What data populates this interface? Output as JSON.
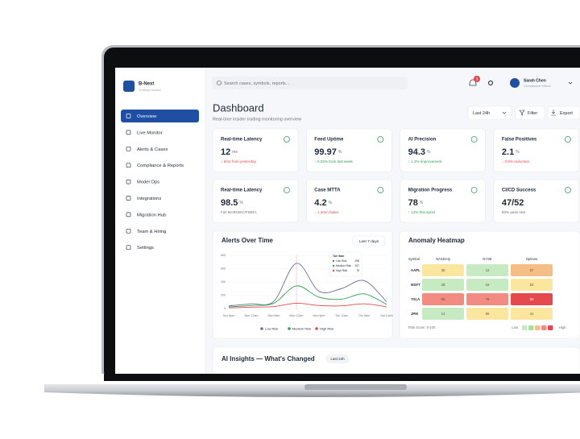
{
  "sidebar": {
    "brand": "B-Next",
    "tagline": "Trading monitor",
    "nav": [
      "Overview",
      "Live Monitor",
      "Alerts & Cases",
      "Compliance & Reports",
      "Model Ops",
      "Integrations",
      "Migration Hub",
      "Team & Hiring",
      "Settings"
    ]
  },
  "topbar": {
    "search_placeholder": "Search cases, symbols, reports...",
    "notifications": "3",
    "user": {
      "name": "Sarah Chen",
      "role": "Compliance Officer"
    }
  },
  "header": {
    "title": "Dashboard",
    "subtitle": "Real-time insider trading monitoring overview",
    "range": "Last 24h",
    "filter": "Filter",
    "export": "Export"
  },
  "cards": [
    {
      "title": "Real-time Latency",
      "value": "12",
      "unit": "ms",
      "note": "↓ 5ms from yesterday"
    },
    {
      "title": "Feed Uptime",
      "value": "99.97",
      "unit": "%",
      "note": "↑ 0.02% from last week"
    },
    {
      "title": "AI Precision",
      "value": "94.3",
      "unit": "%",
      "note": "↑ 1.2% improvement"
    },
    {
      "title": "False Positives",
      "value": "2.1",
      "unit": "%",
      "note": "↓ 0.8% reduction"
    },
    {
      "title": "Real-time Latency",
      "value": "98.5",
      "unit": "%",
      "note": "Full MAR/SEC/FINRA"
    },
    {
      "title": "Case MTTA",
      "value": "4.2",
      "unit": "%",
      "note": "↓ 1.3min faster"
    },
    {
      "title": "Migration Progress",
      "value": "78",
      "unit": "%",
      "note": "↑ 12% this sprint"
    },
    {
      "title": "CI/CD Success",
      "value": "47/52",
      "note": "90% pass rate"
    }
  ],
  "alerts_chart": {
    "type": "line",
    "title": "Alerts Over Time",
    "range": "Last 7 days",
    "categories": [
      "Sun 6pm",
      "Mon 12am",
      "Mon 6am",
      "Mon 12pm",
      "Mon 6pm",
      "Tue 12am",
      "Thu 6am",
      "Sat 12pm"
    ],
    "series": [
      {
        "name": "Low Risk",
        "color": "#6b6f9a",
        "values": [
          40,
          70,
          110,
          680,
          260,
          300,
          420,
          100
        ]
      },
      {
        "name": "Medium Risk",
        "color": "#2e9e4f",
        "values": [
          25,
          45,
          80,
          340,
          170,
          140,
          220,
          60
        ]
      },
      {
        "name": "High Risk",
        "color": "#e5484d",
        "values": [
          10,
          20,
          30,
          80,
          45,
          40,
          70,
          25
        ]
      }
    ],
    "ylim": [
      0,
      800
    ],
    "yticks": [
      0,
      200,
      400,
      600,
      800
    ],
    "tooltip": {
      "title": "Tue 9am",
      "items": [
        {
          "name": "Low Risk",
          "value": 298
        },
        {
          "name": "Medium Risk",
          "value": 267
        },
        {
          "name": "High Risk",
          "value": 78
        }
      ]
    }
  },
  "heatmap": {
    "title": "Anomaly Heatmap",
    "columns": [
      "Symbol",
      "NASDAQ",
      "NYSE",
      "Options"
    ],
    "rows": [
      {
        "symbol": "AAPL",
        "values": [
          35,
          12,
          67
        ]
      },
      {
        "symbol": "MSFT",
        "values": [
          28,
          15,
          52
        ]
      },
      {
        "symbol": "TSLA",
        "values": [
          85,
          76,
          90
        ]
      },
      {
        "symbol": "JPM",
        "values": [
          14,
          56,
          41
        ]
      }
    ],
    "scale_label": "Risk Score: 0-100",
    "low": "Low",
    "high": "High"
  },
  "insights": {
    "title": "AI Insights — What's Changed",
    "range": "Last 24h"
  }
}
